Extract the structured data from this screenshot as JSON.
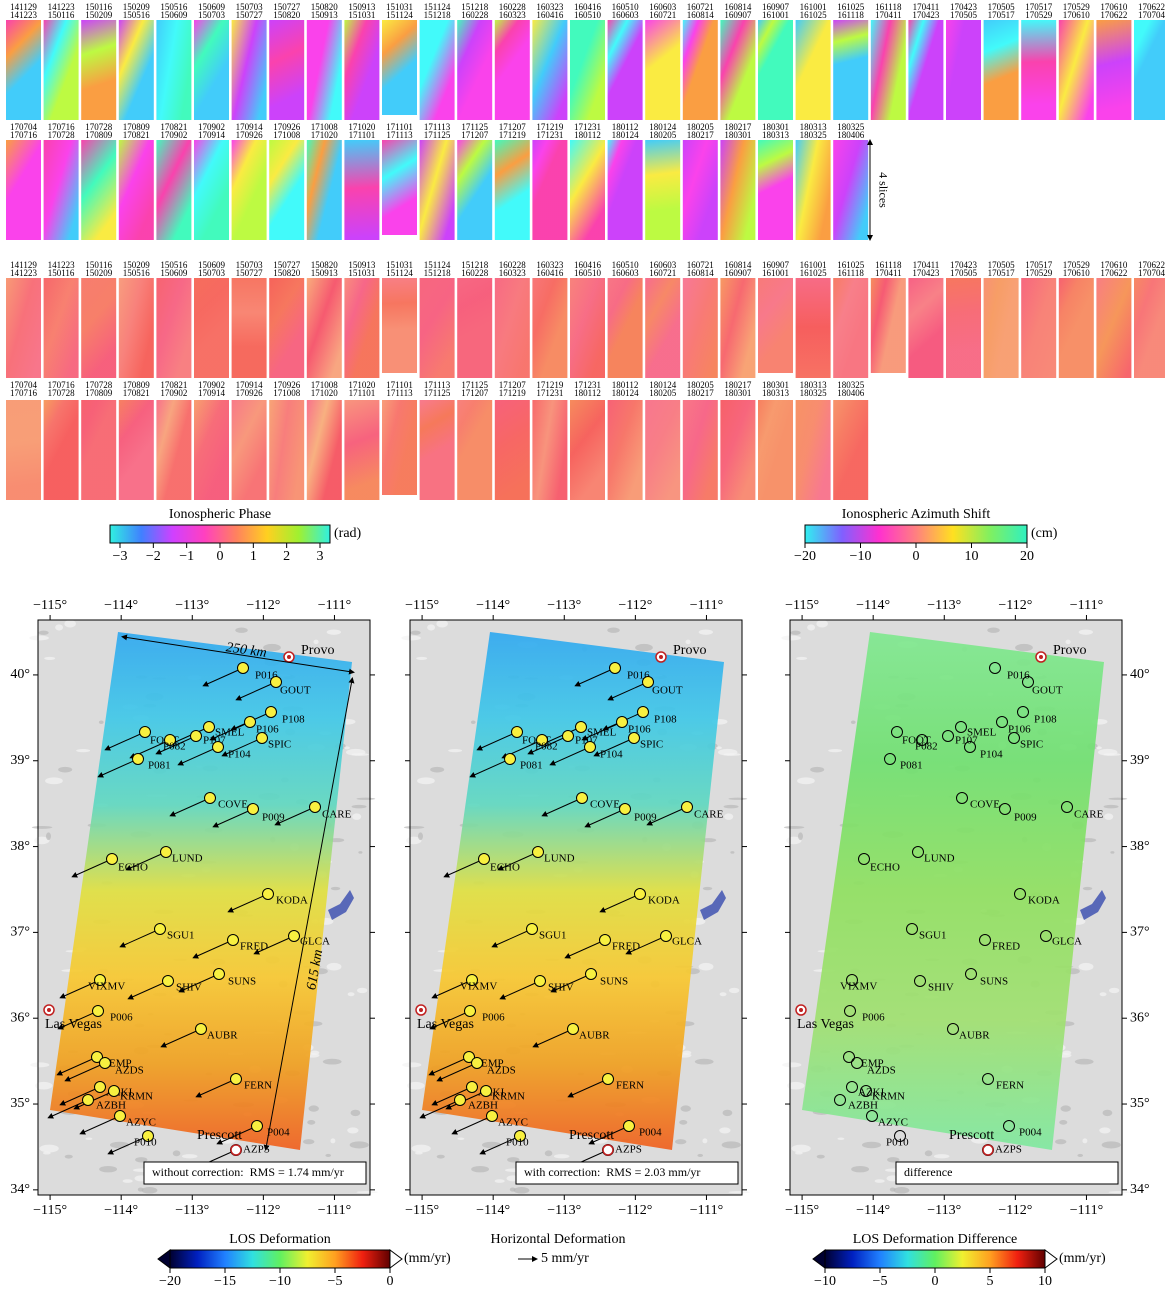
{
  "interferograms": {
    "row1": [
      [
        "141129",
        "141223"
      ],
      [
        "141223",
        "150116"
      ],
      [
        "150116",
        "150209"
      ],
      [
        "150209",
        "150516"
      ],
      [
        "150516",
        "150609"
      ],
      [
        "150609",
        "150703"
      ],
      [
        "150703",
        "150727"
      ],
      [
        "150727",
        "150820"
      ],
      [
        "150820",
        "150913"
      ],
      [
        "150913",
        "151031"
      ],
      [
        "151031",
        "151124"
      ],
      [
        "151124",
        "151218"
      ],
      [
        "151218",
        "160228"
      ],
      [
        "160228",
        "160323"
      ],
      [
        "160323",
        "160416"
      ],
      [
        "160416",
        "160510"
      ],
      [
        "160510",
        "160603"
      ],
      [
        "160603",
        "160721"
      ],
      [
        "160721",
        "160814"
      ],
      [
        "160814",
        "160907"
      ],
      [
        "160907",
        "161001"
      ],
      [
        "161001",
        "161025"
      ],
      [
        "161025",
        "161118"
      ],
      [
        "161118",
        "170411"
      ],
      [
        "170411",
        "170423"
      ],
      [
        "170423",
        "170505"
      ],
      [
        "170505",
        "170517"
      ],
      [
        "170517",
        "170529"
      ],
      [
        "170529",
        "170610"
      ],
      [
        "170610",
        "170622"
      ],
      [
        "170622",
        "170704"
      ]
    ],
    "row2": [
      [
        "170704",
        "170716"
      ],
      [
        "170716",
        "170728"
      ],
      [
        "170728",
        "170809"
      ],
      [
        "170809",
        "170821"
      ],
      [
        "170821",
        "170902"
      ],
      [
        "170902",
        "170914"
      ],
      [
        "170914",
        "170926"
      ],
      [
        "170926",
        "171008"
      ],
      [
        "171008",
        "171020"
      ],
      [
        "171020",
        "171101"
      ],
      [
        "171101",
        "171113"
      ],
      [
        "171113",
        "171125"
      ],
      [
        "171125",
        "171207"
      ],
      [
        "171207",
        "171219"
      ],
      [
        "171219",
        "171231"
      ],
      [
        "171231",
        "180112"
      ],
      [
        "180112",
        "180124"
      ],
      [
        "180124",
        "180205"
      ],
      [
        "180205",
        "180217"
      ],
      [
        "180217",
        "180301"
      ],
      [
        "180301",
        "180313"
      ],
      [
        "180313",
        "180325"
      ],
      [
        "180325",
        "180406"
      ]
    ],
    "slice_note": "4 slices"
  },
  "colorbars": {
    "phase": {
      "title": "Ionospheric Phase",
      "unit": "(rad)",
      "range": [
        -3.3,
        3.3
      ],
      "ticks": [
        {
          "value": -3,
          "label": "−3"
        },
        {
          "value": -2,
          "label": "−2"
        },
        {
          "value": -1,
          "label": "−1"
        },
        0,
        1,
        2,
        3
      ]
    },
    "azimuth": {
      "title": "Ionospheric Azimuth Shift",
      "unit": "(cm)",
      "range": [
        -20,
        20
      ],
      "ticks": [
        {
          "value": -20,
          "label": "−20"
        },
        {
          "value": -10,
          "label": "−10"
        },
        0,
        10,
        20
      ]
    },
    "los": {
      "title": "LOS Deformation",
      "unit": "(mm/yr)",
      "range": [
        -20,
        0
      ],
      "ticks": [
        {
          "value": -20,
          "label": "−20"
        },
        {
          "value": -15,
          "label": "−15"
        },
        {
          "value": -10,
          "label": "−10"
        },
        {
          "value": -5,
          "label": "−5"
        },
        0
      ]
    },
    "difference": {
      "title": "LOS Deformation Difference",
      "unit": "(mm/yr)",
      "range": [
        -10,
        10
      ],
      "ticks": [
        {
          "value": -10,
          "label": "−10"
        },
        {
          "value": -5,
          "label": "−5"
        },
        0,
        5,
        10
      ]
    }
  },
  "horizontal": {
    "title": "Horizontal Deformation",
    "label": "5 mm/yr"
  },
  "maps": {
    "lon_range": [
      -115.17,
      -110.5
    ],
    "lat_range": [
      33.94,
      40.64
    ],
    "lon_ticks": [
      {
        "value": -115,
        "label": "−115°"
      },
      {
        "value": -114,
        "label": "−114°"
      },
      {
        "value": -113,
        "label": "−113°"
      },
      {
        "value": -112,
        "label": "−112°"
      },
      {
        "value": -111,
        "label": "−111°"
      }
    ],
    "lat_ticks": [
      {
        "value": 34,
        "label": "34°"
      },
      {
        "value": 35,
        "label": "35°"
      },
      {
        "value": 36,
        "label": "36°"
      },
      {
        "value": 37,
        "label": "37°"
      },
      {
        "value": 38,
        "label": "38°"
      },
      {
        "value": 39,
        "label": "39°"
      },
      {
        "value": 40,
        "label": "40°"
      }
    ],
    "panels": [
      "without correction:  RMS = 1.74 mm/yr",
      "with correction:  RMS = 2.03 mm/yr",
      "difference"
    ],
    "scale_labels": [
      "250 km",
      "615 km"
    ],
    "cities": [
      "Provo",
      "Las Vegas",
      "Prescott"
    ],
    "stations": [
      "P016",
      "GOUT",
      "P108",
      "SMEL",
      "P106",
      "P107",
      "FOOT",
      "P082",
      "P081",
      "P104",
      "SPIC",
      "COVE",
      "P009",
      "CARE",
      "ECHO",
      "LUND",
      "KODA",
      "SGU1",
      "FRED",
      "GLCA",
      "VIXMV",
      "SHIV",
      "SUNS",
      "P006",
      "AUBR",
      "EMP",
      "AZDS",
      "FERN",
      "AZKI",
      "KRMN",
      "AZBH",
      "AZYC",
      "P010",
      "P004",
      "AZPS"
    ]
  }
}
